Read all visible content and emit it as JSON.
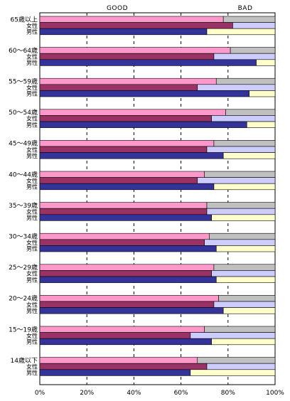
{
  "chart_data": {
    "type": "bar",
    "orientation": "horizontal",
    "stacked": true,
    "percent": true,
    "header_labels": {
      "good": "GOOD",
      "bad": "BAD"
    },
    "x_ticks": [
      "0%",
      "20%",
      "40%",
      "60%",
      "80%",
      "100%"
    ],
    "xlim": [
      0,
      100
    ],
    "grid": "vertical dashed",
    "sub_labels": {
      "female": "女性",
      "male": "男性"
    },
    "groups": [
      {
        "label": "65歳以上",
        "overall": [
          78,
          22
        ],
        "female": [
          82,
          18
        ],
        "male": [
          71,
          29
        ]
      },
      {
        "label": "60～64歳",
        "overall": [
          81,
          19
        ],
        "female": [
          74,
          26
        ],
        "male": [
          92,
          8
        ]
      },
      {
        "label": "55～59歳",
        "overall": [
          75,
          25
        ],
        "female": [
          67,
          33
        ],
        "male": [
          89,
          11
        ]
      },
      {
        "label": "50～54歳",
        "overall": [
          79,
          21
        ],
        "female": [
          73,
          27
        ],
        "male": [
          88,
          12
        ]
      },
      {
        "label": "45～49歳",
        "overall": [
          74,
          26
        ],
        "female": [
          71,
          29
        ],
        "male": [
          78,
          22
        ]
      },
      {
        "label": "40～44歳",
        "overall": [
          70,
          30
        ],
        "female": [
          67,
          33
        ],
        "male": [
          74,
          26
        ]
      },
      {
        "label": "35～39歳",
        "overall": [
          71,
          29
        ],
        "female": [
          71,
          29
        ],
        "male": [
          73,
          27
        ]
      },
      {
        "label": "30～34歳",
        "overall": [
          72,
          28
        ],
        "female": [
          70,
          30
        ],
        "male": [
          75,
          25
        ]
      },
      {
        "label": "25～29歳",
        "overall": [
          74,
          26
        ],
        "female": [
          73,
          27
        ],
        "male": [
          75,
          25
        ]
      },
      {
        "label": "20～24歳",
        "overall": [
          76,
          24
        ],
        "female": [
          74,
          26
        ],
        "male": [
          78,
          22
        ]
      },
      {
        "label": "15～19歳",
        "overall": [
          70,
          30
        ],
        "female": [
          64,
          36
        ],
        "male": [
          73,
          27
        ]
      },
      {
        "label": "14歳以下",
        "overall": [
          67,
          33
        ],
        "female": [
          71,
          29
        ],
        "male": [
          64,
          36
        ]
      }
    ],
    "colors": {
      "overall_good": "#ff99cc",
      "overall_bad": "#c0c0c0",
      "female_good": "#993366",
      "female_bad": "#ccccff",
      "male_good": "#333399",
      "male_bad": "#ffffcc",
      "border": "#000000"
    }
  }
}
